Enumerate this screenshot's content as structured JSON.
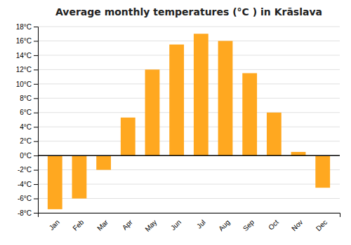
{
  "chart_data": {
    "type": "bar",
    "title": "Average monthly temperatures (°C ) in Krāslava",
    "categories": [
      "Jan",
      "Feb",
      "Mar",
      "Apr",
      "May",
      "Jun",
      "Jul",
      "Aug",
      "Sep",
      "Oct",
      "Nov",
      "Dec"
    ],
    "values": [
      -7.5,
      -6.0,
      -2.0,
      5.3,
      12.0,
      15.5,
      17.0,
      16.0,
      11.5,
      6.0,
      0.5,
      -4.5
    ],
    "color": "#FFA820",
    "ylim": [
      -8,
      18
    ],
    "yticks": [
      {
        "value": -8,
        "label": "-8°C"
      },
      {
        "value": -6,
        "label": "-6°C"
      },
      {
        "value": -4,
        "label": "-4°C"
      },
      {
        "value": -2,
        "label": "-2°C"
      },
      {
        "value": 0,
        "label": "0°C"
      },
      {
        "value": 2,
        "label": "2°C"
      },
      {
        "value": 4,
        "label": "4°C"
      },
      {
        "value": 6,
        "label": "6°C"
      },
      {
        "value": 8,
        "label": "8°C"
      },
      {
        "value": 10,
        "label": "10°C"
      },
      {
        "value": 12,
        "label": "12°C"
      },
      {
        "value": 14,
        "label": "14°C"
      },
      {
        "value": 16,
        "label": "16°C"
      },
      {
        "value": 18,
        "label": "18°C"
      }
    ],
    "grid": true
  }
}
